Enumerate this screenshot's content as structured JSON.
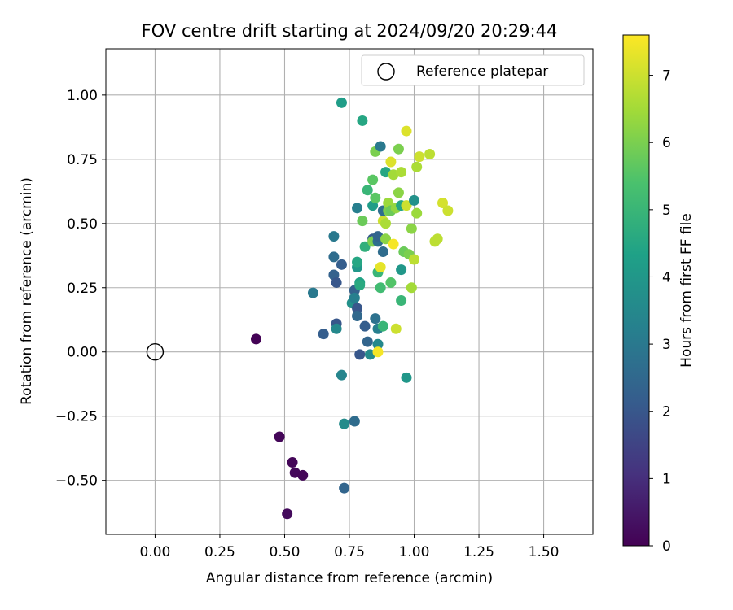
{
  "chart_data": {
    "type": "scatter",
    "title": "FOV centre drift starting at 2024/09/20 20:29:44",
    "xlabel": "Angular distance from reference (arcmin)",
    "ylabel": "Rotation from reference (arcmin)",
    "xlim": [
      -0.19,
      1.69
    ],
    "ylim": [
      -0.71,
      1.18
    ],
    "xticks": [
      0.0,
      0.25,
      0.5,
      0.75,
      1.0,
      1.25,
      1.5
    ],
    "xtick_labels": [
      "0.00",
      "0.25",
      "0.50",
      "0.75",
      "1.00",
      "1.25",
      "1.50"
    ],
    "yticks": [
      -0.5,
      -0.25,
      0.0,
      0.25,
      0.5,
      0.75,
      1.0
    ],
    "ytick_labels": [
      "−0.50",
      "−0.25",
      "0.00",
      "0.25",
      "0.50",
      "0.75",
      "1.00"
    ],
    "grid": true,
    "legend": {
      "placement": "top-right",
      "entries": [
        "Reference platepar"
      ]
    },
    "reference_point": {
      "name": "Reference platepar",
      "x": 0.0,
      "y": 0.0
    },
    "colorbar": {
      "label": "Hours from first FF file",
      "range": [
        0,
        7.6
      ],
      "ticks": [
        0,
        1,
        2,
        3,
        4,
        5,
        6,
        7
      ],
      "tick_labels": [
        "0",
        "1",
        "2",
        "3",
        "4",
        "5",
        "6",
        "7"
      ],
      "colormap": "viridis"
    },
    "series": [
      {
        "points": [
          {
            "x": 0.39,
            "y": 0.05,
            "h": 0.05
          },
          {
            "x": 0.48,
            "y": -0.33,
            "h": 0.1
          },
          {
            "x": 0.53,
            "y": -0.43,
            "h": 0.1
          },
          {
            "x": 0.54,
            "y": -0.47,
            "h": 0.15
          },
          {
            "x": 0.57,
            "y": -0.48,
            "h": 0.1
          },
          {
            "x": 0.51,
            "y": -0.63,
            "h": 0.2
          },
          {
            "x": 0.61,
            "y": 0.23,
            "h": 3.0
          },
          {
            "x": 0.65,
            "y": 0.07,
            "h": 2.2
          },
          {
            "x": 0.69,
            "y": 0.37,
            "h": 2.6
          },
          {
            "x": 0.69,
            "y": 0.45,
            "h": 3.0
          },
          {
            "x": 0.69,
            "y": 0.3,
            "h": 2.3
          },
          {
            "x": 0.7,
            "y": 0.11,
            "h": 2.0
          },
          {
            "x": 0.7,
            "y": 0.27,
            "h": 2.0
          },
          {
            "x": 0.7,
            "y": 0.09,
            "h": 3.5
          },
          {
            "x": 0.72,
            "y": 0.34,
            "h": 2.2
          },
          {
            "x": 0.72,
            "y": 0.97,
            "h": 4.2
          },
          {
            "x": 0.72,
            "y": -0.09,
            "h": 3.4
          },
          {
            "x": 0.73,
            "y": -0.28,
            "h": 3.6
          },
          {
            "x": 0.73,
            "y": -0.53,
            "h": 2.4
          },
          {
            "x": 0.76,
            "y": 0.19,
            "h": 3.8
          },
          {
            "x": 0.77,
            "y": -0.27,
            "h": 2.6
          },
          {
            "x": 0.77,
            "y": 0.24,
            "h": 2.3
          },
          {
            "x": 0.77,
            "y": 0.21,
            "h": 3.2
          },
          {
            "x": 0.78,
            "y": 0.17,
            "h": 2.0
          },
          {
            "x": 0.78,
            "y": 0.14,
            "h": 2.5
          },
          {
            "x": 0.78,
            "y": 0.56,
            "h": 3.2
          },
          {
            "x": 0.78,
            "y": 0.33,
            "h": 4.0
          },
          {
            "x": 0.78,
            "y": 0.35,
            "h": 4.5
          },
          {
            "x": 0.79,
            "y": 0.27,
            "h": 4.4
          },
          {
            "x": 0.79,
            "y": 0.26,
            "h": 4.6
          },
          {
            "x": 0.79,
            "y": -0.01,
            "h": 2.0
          },
          {
            "x": 0.8,
            "y": 0.9,
            "h": 4.5
          },
          {
            "x": 0.8,
            "y": 0.51,
            "h": 5.8
          },
          {
            "x": 0.81,
            "y": 0.41,
            "h": 4.8
          },
          {
            "x": 0.81,
            "y": 0.1,
            "h": 2.2
          },
          {
            "x": 0.82,
            "y": 0.04,
            "h": 2.4
          },
          {
            "x": 0.82,
            "y": 0.63,
            "h": 5.0
          },
          {
            "x": 0.83,
            "y": -0.01,
            "h": 3.6
          },
          {
            "x": 0.84,
            "y": 0.44,
            "h": 2.1
          },
          {
            "x": 0.84,
            "y": 0.57,
            "h": 4.2
          },
          {
            "x": 0.84,
            "y": 0.67,
            "h": 5.6
          },
          {
            "x": 0.84,
            "y": 0.43,
            "h": 6.0
          },
          {
            "x": 0.85,
            "y": 0.6,
            "h": 5.6
          },
          {
            "x": 0.85,
            "y": 0.13,
            "h": 2.8
          },
          {
            "x": 0.85,
            "y": 0.78,
            "h": 6.0
          },
          {
            "x": 0.86,
            "y": 0.31,
            "h": 5.0
          },
          {
            "x": 0.86,
            "y": 0.03,
            "h": 3.5
          },
          {
            "x": 0.86,
            "y": 0.09,
            "h": 3.2
          },
          {
            "x": 0.86,
            "y": 0.43,
            "h": 2.7
          },
          {
            "x": 0.86,
            "y": 0.45,
            "h": 2.4
          },
          {
            "x": 0.86,
            "y": 0.0,
            "h": 7.5
          },
          {
            "x": 0.87,
            "y": 0.8,
            "h": 3.0
          },
          {
            "x": 0.87,
            "y": 0.33,
            "h": 7.3
          },
          {
            "x": 0.87,
            "y": 0.25,
            "h": 5.2
          },
          {
            "x": 0.88,
            "y": 0.51,
            "h": 7.0
          },
          {
            "x": 0.88,
            "y": 0.55,
            "h": 2.7
          },
          {
            "x": 0.88,
            "y": 0.39,
            "h": 2.6
          },
          {
            "x": 0.88,
            "y": 0.1,
            "h": 5.0
          },
          {
            "x": 0.89,
            "y": 0.5,
            "h": 6.6
          },
          {
            "x": 0.89,
            "y": 0.44,
            "h": 6.2
          },
          {
            "x": 0.89,
            "y": 0.7,
            "h": 4.5
          },
          {
            "x": 0.9,
            "y": 0.55,
            "h": 6.0
          },
          {
            "x": 0.9,
            "y": 0.58,
            "h": 6.4
          },
          {
            "x": 0.91,
            "y": 0.74,
            "h": 7.2
          },
          {
            "x": 0.91,
            "y": 0.27,
            "h": 5.5
          },
          {
            "x": 0.91,
            "y": 0.55,
            "h": 5.8
          },
          {
            "x": 0.92,
            "y": 0.42,
            "h": 7.5
          },
          {
            "x": 0.92,
            "y": 0.69,
            "h": 6.5
          },
          {
            "x": 0.93,
            "y": 0.09,
            "h": 7.0
          },
          {
            "x": 0.93,
            "y": 0.56,
            "h": 6.3
          },
          {
            "x": 0.94,
            "y": 0.62,
            "h": 6.2
          },
          {
            "x": 0.94,
            "y": 0.79,
            "h": 6.0
          },
          {
            "x": 0.95,
            "y": 0.7,
            "h": 6.6
          },
          {
            "x": 0.95,
            "y": 0.57,
            "h": 4.5
          },
          {
            "x": 0.95,
            "y": 0.2,
            "h": 5.0
          },
          {
            "x": 0.95,
            "y": 0.32,
            "h": 4.0
          },
          {
            "x": 0.96,
            "y": 0.39,
            "h": 5.8
          },
          {
            "x": 0.97,
            "y": 0.86,
            "h": 7.2
          },
          {
            "x": 0.97,
            "y": 0.57,
            "h": 7.0
          },
          {
            "x": 0.97,
            "y": -0.1,
            "h": 4.0
          },
          {
            "x": 0.98,
            "y": 0.38,
            "h": 6.0
          },
          {
            "x": 0.99,
            "y": 0.25,
            "h": 6.5
          },
          {
            "x": 0.99,
            "y": 0.48,
            "h": 6.2
          },
          {
            "x": 1.0,
            "y": 0.36,
            "h": 6.8
          },
          {
            "x": 1.0,
            "y": 0.59,
            "h": 3.8
          },
          {
            "x": 1.01,
            "y": 0.72,
            "h": 6.6
          },
          {
            "x": 1.01,
            "y": 0.54,
            "h": 6.4
          },
          {
            "x": 1.02,
            "y": 0.76,
            "h": 7.0
          },
          {
            "x": 1.06,
            "y": 0.77,
            "h": 6.8
          },
          {
            "x": 1.08,
            "y": 0.43,
            "h": 6.8
          },
          {
            "x": 1.09,
            "y": 0.44,
            "h": 6.8
          },
          {
            "x": 1.11,
            "y": 0.58,
            "h": 7.1
          },
          {
            "x": 1.13,
            "y": 0.55,
            "h": 7.0
          }
        ]
      }
    ]
  }
}
